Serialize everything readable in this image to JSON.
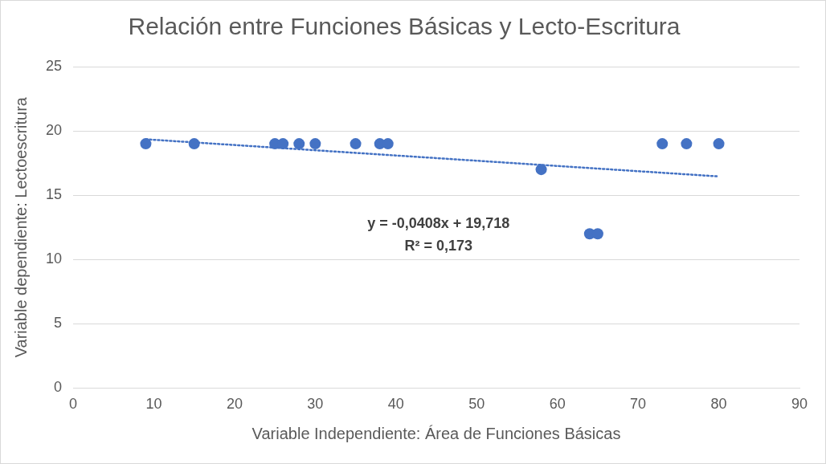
{
  "chart_data": {
    "type": "scatter",
    "title": "Relación entre Funciones Básicas y Lecto-Escritura",
    "xlabel": "Variable Independiente: Área de Funciones Básicas",
    "ylabel": "Variable dependiente: Lectoescritura",
    "x": [
      9,
      15,
      25,
      26,
      28,
      30,
      35,
      38,
      39,
      58,
      64,
      65,
      73,
      76,
      80
    ],
    "series": [
      {
        "type": "scatter",
        "color": "#4472c4",
        "marker": "circle",
        "values": [
          19,
          19,
          19,
          19,
          19,
          19,
          19,
          19,
          19,
          17,
          12,
          12,
          19,
          19,
          19
        ]
      },
      {
        "type": "line",
        "color": "#4472c4",
        "line_style": "dotted",
        "marker": "none",
        "x": [
          9,
          80
        ],
        "values": [
          19.35,
          16.46
        ]
      }
    ],
    "annotations": [
      "y = -0,0408x + 19,718",
      "R² = 0,173"
    ],
    "xlim": [
      0,
      90
    ],
    "xticks": [
      0,
      10,
      20,
      30,
      40,
      50,
      60,
      70,
      80,
      90
    ],
    "ylim": [
      0,
      25
    ],
    "yticks": [
      0,
      5,
      10,
      15,
      20,
      25
    ],
    "grid": "y",
    "legend": false
  }
}
